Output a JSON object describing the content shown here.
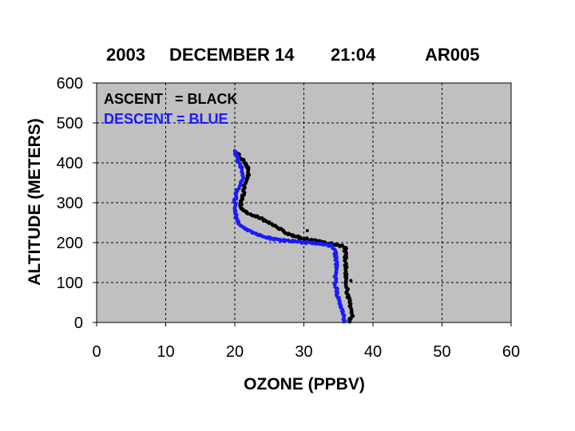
{
  "title": {
    "year": "2003",
    "date": "DECEMBER 14",
    "time": "21:04",
    "id": "AR005"
  },
  "chart_data": {
    "type": "scatter",
    "xlabel": "OZONE (PPBV)",
    "ylabel": "ALTITUDE (METERS)",
    "xlim": [
      0,
      60
    ],
    "ylim": [
      0,
      600
    ],
    "xticks": [
      0,
      10,
      20,
      30,
      40,
      50,
      60
    ],
    "yticks": [
      0,
      100,
      200,
      300,
      400,
      500,
      600
    ],
    "xtick_labels": [
      "0",
      "10",
      "20",
      "30",
      "40",
      "50",
      "60"
    ],
    "ytick_labels": [
      "0",
      "100",
      "200",
      "300",
      "400",
      "500",
      "600"
    ],
    "grid": true,
    "plot_background": "#c0c0c0",
    "legend_position": "top-left",
    "legend": [
      {
        "text": "ASCENT   = BLACK",
        "color": "#000000"
      },
      {
        "text": "DESCENT = BLUE",
        "color": "#1a1aff"
      }
    ],
    "series": [
      {
        "name": "ASCENT",
        "color": "#000000",
        "points": [
          [
            36.5,
            0
          ],
          [
            37,
            20
          ],
          [
            36.8,
            40
          ],
          [
            36.3,
            70
          ],
          [
            36.2,
            100
          ],
          [
            36.1,
            130
          ],
          [
            36,
            160
          ],
          [
            36,
            185
          ],
          [
            35.5,
            192
          ],
          [
            33,
            200
          ],
          [
            30,
            210
          ],
          [
            28,
            220
          ],
          [
            26,
            240
          ],
          [
            24,
            260
          ],
          [
            22,
            272
          ],
          [
            21,
            285
          ],
          [
            20.8,
            300
          ],
          [
            21.2,
            320
          ],
          [
            21.4,
            350
          ],
          [
            22,
            370
          ],
          [
            21.8,
            395
          ],
          [
            21,
            410
          ],
          [
            20.3,
            425
          ]
        ]
      },
      {
        "name": "DESCENT",
        "color": "#1a1aff",
        "points": [
          [
            35.9,
            0
          ],
          [
            35.7,
            20
          ],
          [
            35.4,
            40
          ],
          [
            35,
            60
          ],
          [
            34.6,
            90
          ],
          [
            34.6,
            120
          ],
          [
            34.7,
            150
          ],
          [
            34.5,
            180
          ],
          [
            34.1,
            192
          ],
          [
            32,
            198
          ],
          [
            29,
            202
          ],
          [
            26,
            208
          ],
          [
            24,
            215
          ],
          [
            22.5,
            225
          ],
          [
            21.3,
            238
          ],
          [
            20.5,
            250
          ],
          [
            20.1,
            270
          ],
          [
            20,
            300
          ],
          [
            20.3,
            330
          ],
          [
            21,
            350
          ],
          [
            21.1,
            370
          ],
          [
            20.9,
            390
          ],
          [
            20.4,
            410
          ],
          [
            20,
            430
          ]
        ]
      }
    ],
    "outliers": [
      {
        "series": "ASCENT",
        "x": 30.5,
        "y": 230
      },
      {
        "series": "ASCENT",
        "x": 36.8,
        "y": 105
      }
    ]
  }
}
